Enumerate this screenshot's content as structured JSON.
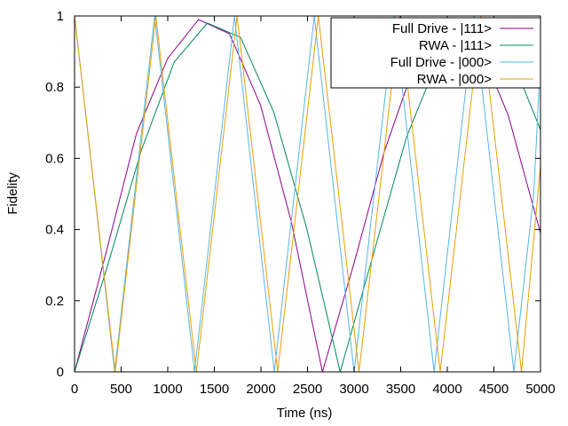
{
  "chart_data": {
    "type": "line",
    "xlabel": "Time (ns)",
    "ylabel": "Fidelity",
    "xlim": [
      0,
      5000
    ],
    "ylim": [
      0,
      1
    ],
    "xticks": [
      "0",
      "500",
      "1000",
      "1500",
      "2000",
      "2500",
      "3000",
      "3500",
      "4000",
      "4500",
      "5000"
    ],
    "yticks": [
      "0",
      "0.2",
      "0.4",
      "0.6",
      "0.8",
      "1"
    ],
    "legend_position": "top-right",
    "grid": false,
    "series": [
      {
        "name": "Full Drive - |111>",
        "color": "#8b008b",
        "x": [
          0,
          333,
          665,
          998,
          1330,
          1663,
          1995,
          2328,
          2660,
          2993,
          3325,
          3658,
          3990,
          4323,
          4655,
          5000
        ],
        "y": [
          0.0,
          0.33,
          0.67,
          0.88,
          0.99,
          0.95,
          0.75,
          0.42,
          0.0,
          0.3,
          0.62,
          0.87,
          0.99,
          0.93,
          0.72,
          0.39
        ]
      },
      {
        "name": "RWA - |111>",
        "color": "#00875a",
        "x": [
          0,
          356,
          713,
          1069,
          1425,
          1781,
          2138,
          2494,
          2850,
          3206,
          3563,
          3919,
          4275,
          4631,
          5000
        ],
        "y": [
          0.0,
          0.3,
          0.62,
          0.87,
          0.98,
          0.94,
          0.73,
          0.4,
          0.0,
          0.33,
          0.66,
          0.89,
          0.99,
          0.92,
          0.68
        ]
      },
      {
        "name": "Full Drive - |000>",
        "color": "#56b4e9",
        "x": [
          0,
          216,
          430,
          644,
          860,
          1074,
          1288,
          1502,
          1716,
          1930,
          2144,
          2358,
          2572,
          2786,
          3000,
          3214,
          3430,
          3644,
          3858,
          4072,
          4286,
          4500,
          4714,
          4928,
          5000
        ],
        "y": [
          1.0,
          0.5,
          0.0,
          0.5,
          1.0,
          0.5,
          0.0,
          0.5,
          1.0,
          0.5,
          0.0,
          0.5,
          1.0,
          0.5,
          0.0,
          0.5,
          1.0,
          0.5,
          0.0,
          0.5,
          1.0,
          0.5,
          0.0,
          0.5,
          0.88
        ]
      },
      {
        "name": "RWA - |000>",
        "color": "#e69f00",
        "x": [
          0,
          218,
          436,
          654,
          872,
          1090,
          1308,
          1526,
          1744,
          1962,
          2180,
          2398,
          2616,
          2834,
          3052,
          3270,
          3488,
          3706,
          3924,
          4142,
          4360,
          4578,
          4796,
          5000
        ],
        "y": [
          1.0,
          0.5,
          0.0,
          0.5,
          1.0,
          0.5,
          0.0,
          0.5,
          1.0,
          0.5,
          0.0,
          0.5,
          1.0,
          0.5,
          0.0,
          0.5,
          1.0,
          0.5,
          0.0,
          0.5,
          1.0,
          0.5,
          0.0,
          0.58
        ]
      }
    ]
  }
}
